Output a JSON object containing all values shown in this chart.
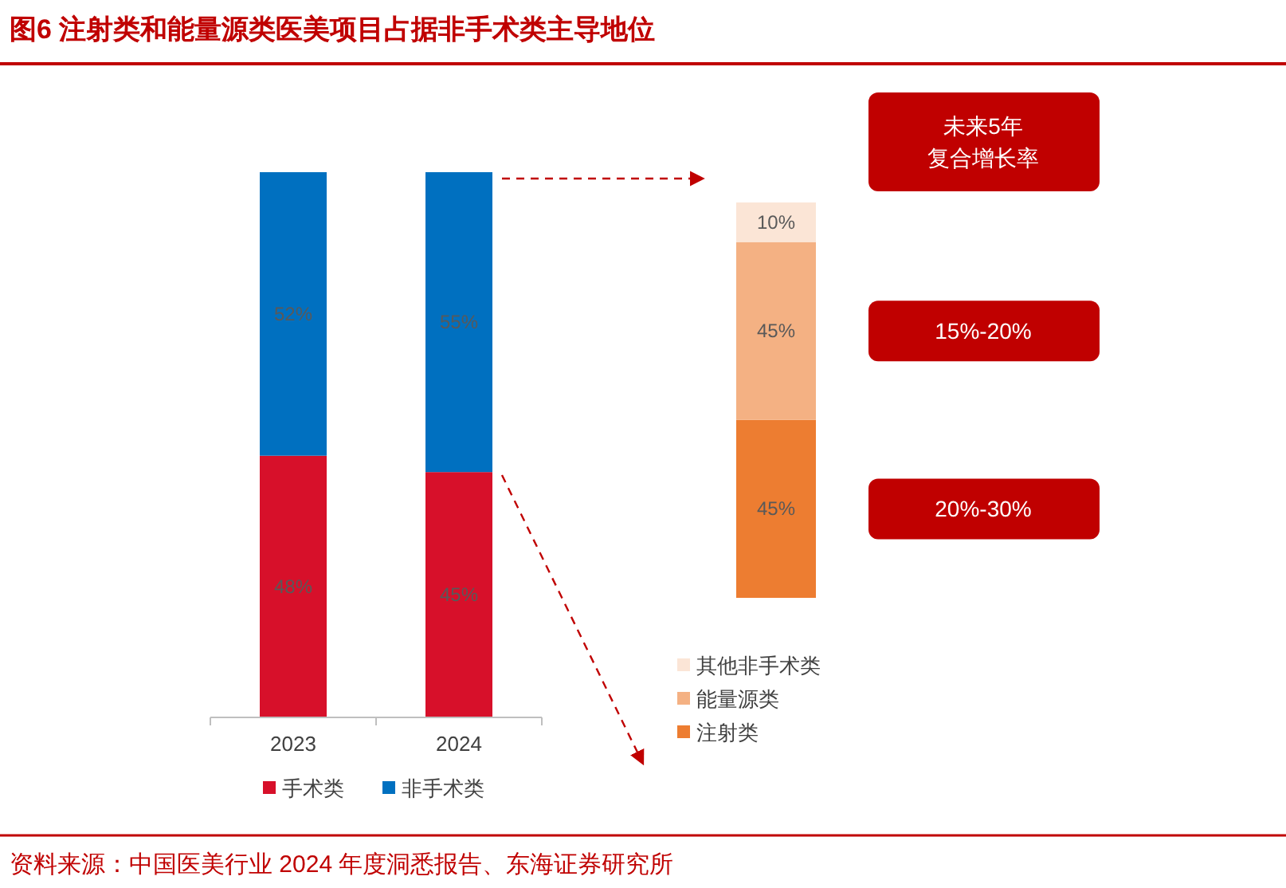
{
  "chart_data": [
    {
      "type": "bar",
      "stacked": true,
      "title": "图6  注射类和能量源类医美项目占据非手术类主导地位",
      "categories": [
        "2023",
        "2024"
      ],
      "legend": "bottom",
      "series": [
        {
          "name": "手术类",
          "color": "#d7102a",
          "values": [
            48,
            45
          ],
          "value_labels": [
            "48%",
            "45%"
          ]
        },
        {
          "name": "非手术类",
          "color": "#0070c0",
          "values": [
            52,
            55
          ],
          "value_labels": [
            "52%",
            "55%"
          ]
        }
      ],
      "annotations": [
        "资料来源：中国医美行业 2024 年度洞悉报告、东海证券研究所"
      ]
    },
    {
      "type": "bar",
      "stacked": true,
      "categories": [
        null
      ],
      "legend": "bottom",
      "series": [
        {
          "name": "注射类",
          "color": "#ed7d31",
          "values": [
            45
          ],
          "value_labels": [
            "45%"
          ]
        },
        {
          "name": "能量源类",
          "color": "#f4b183",
          "values": [
            45
          ],
          "value_labels": [
            "45%"
          ]
        },
        {
          "name": "其他非手术类",
          "color": "#fbe5d6",
          "values": [
            10
          ],
          "value_labels": [
            "10%"
          ]
        }
      ],
      "annotations": [
        "未来5年",
        "复合增长率",
        "15%-20%",
        "20%-30%"
      ]
    }
  ]
}
